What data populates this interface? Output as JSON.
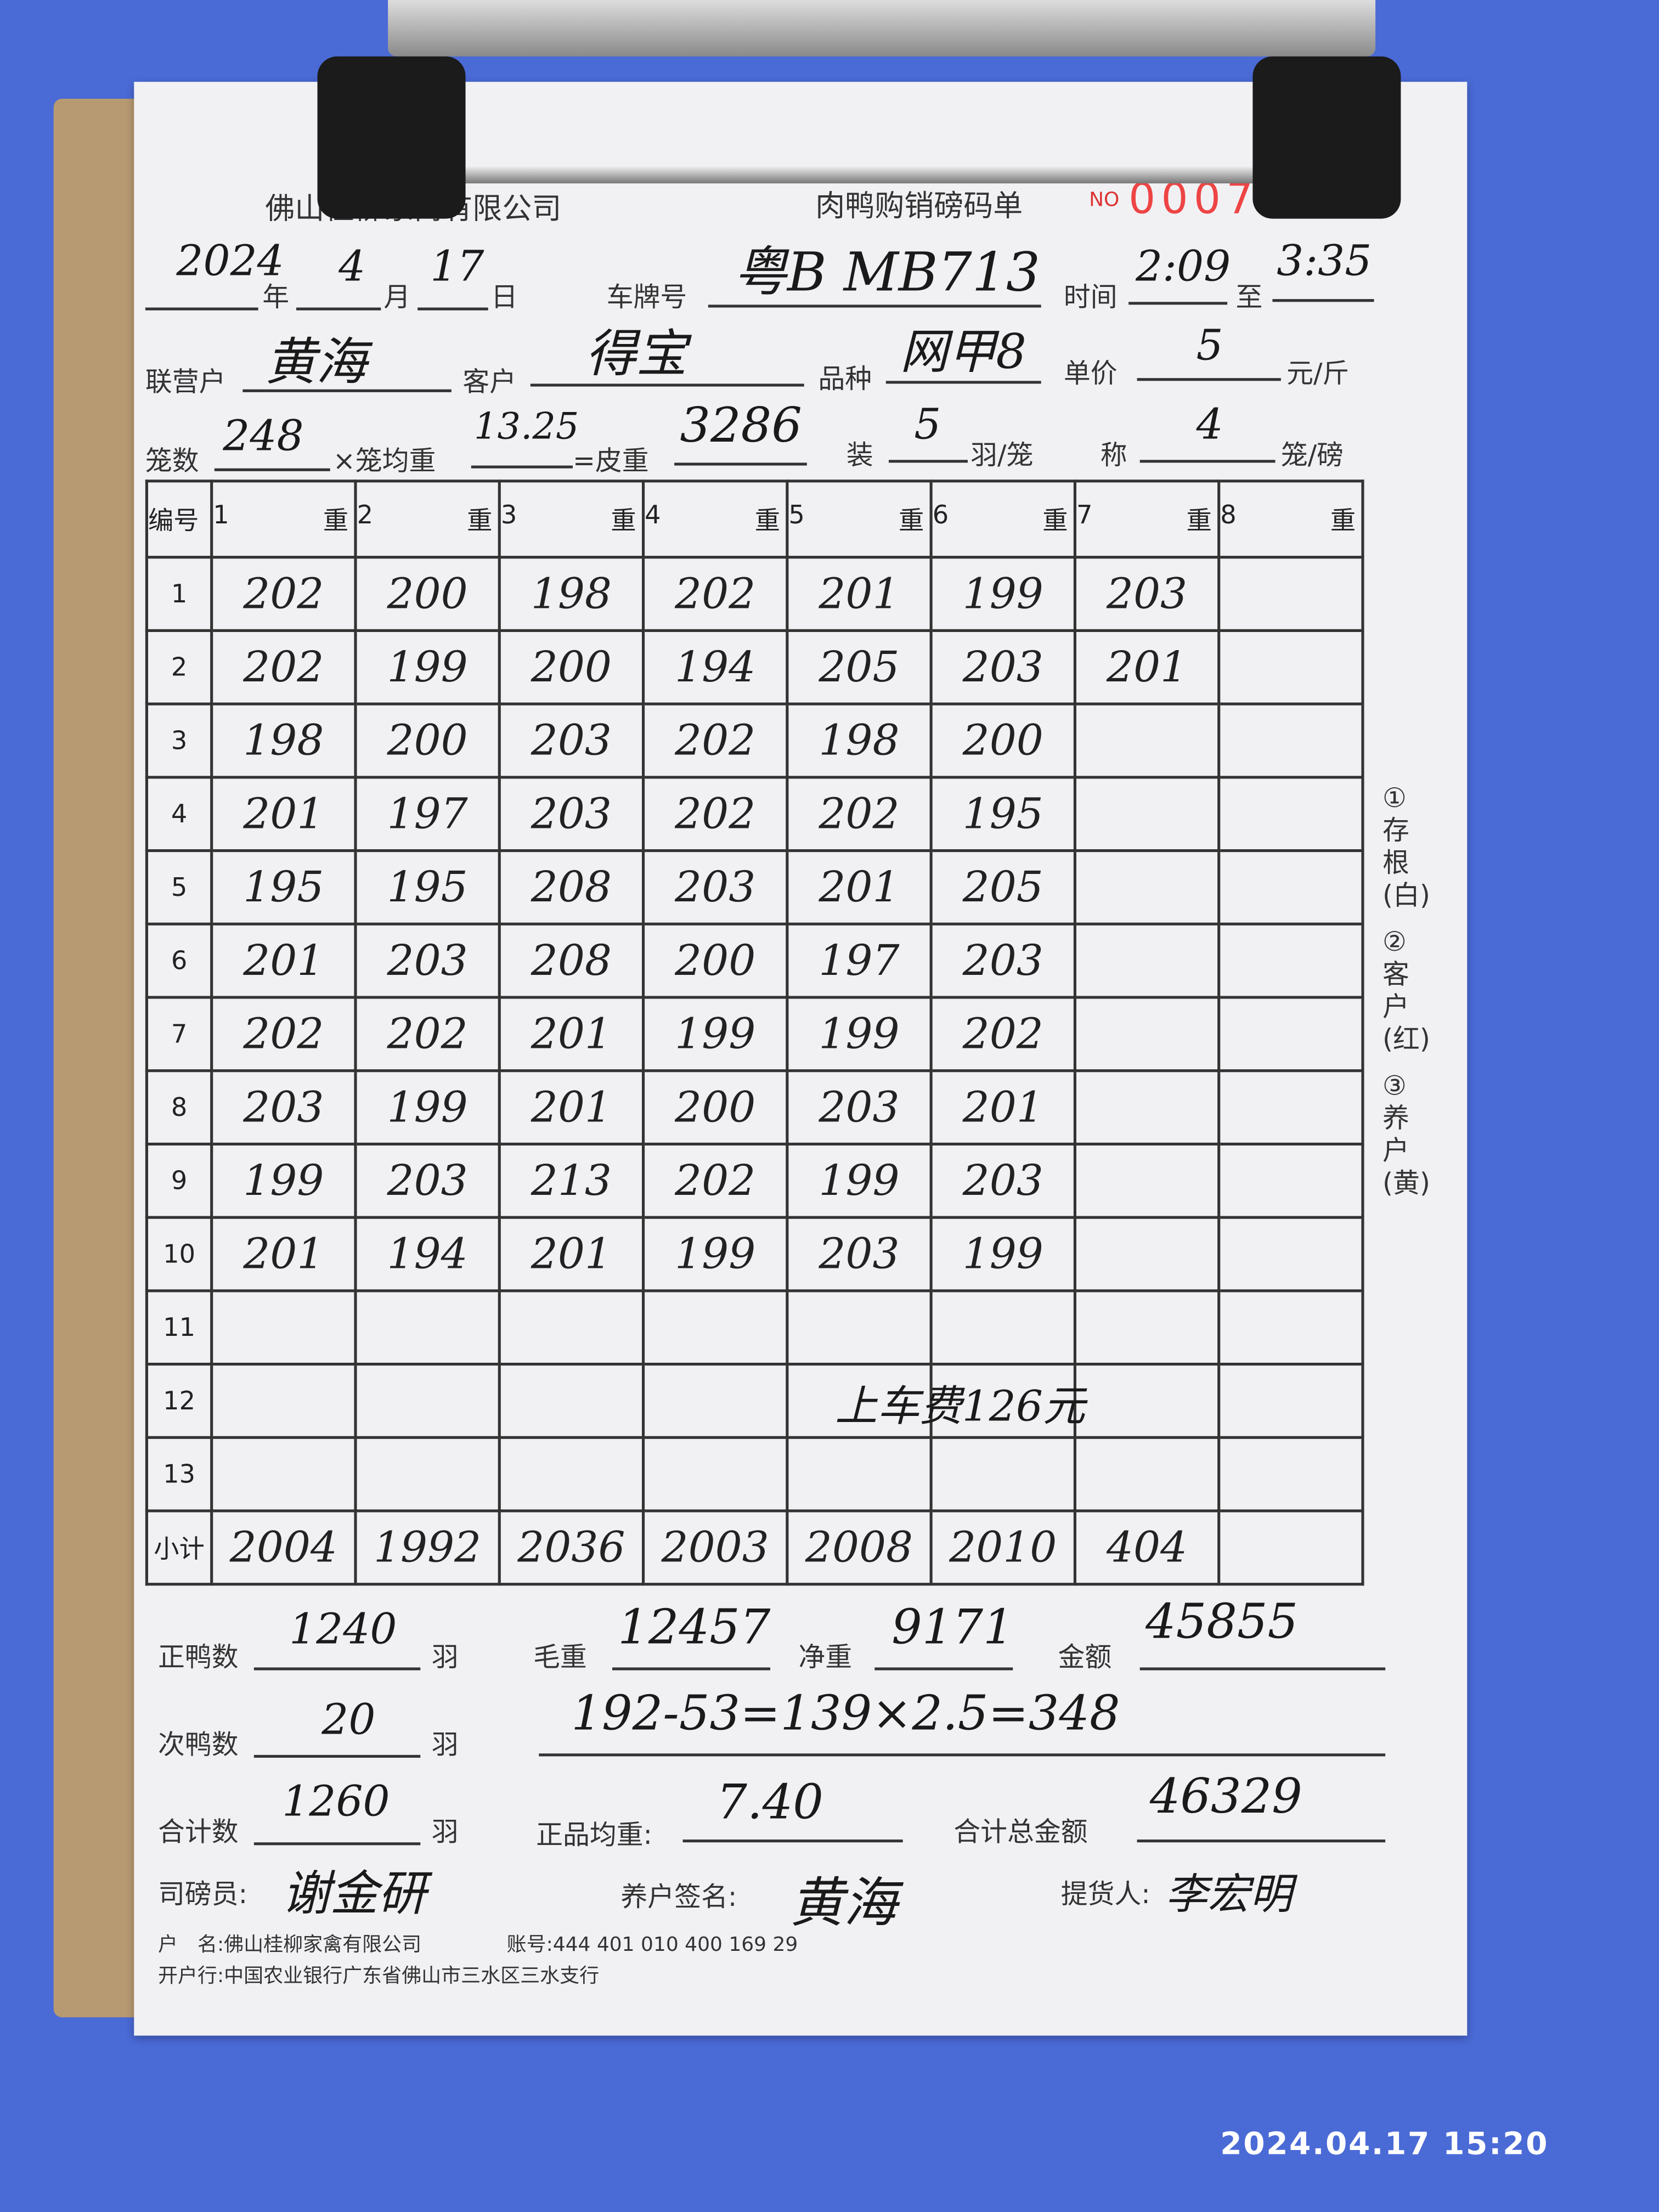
{
  "header": {
    "company": "佛山桂柳家禽有限公司",
    "form_title": "肉鸭购销磅码单",
    "no_label": "NO",
    "serial_no": "0007354"
  },
  "date": {
    "year": "2024",
    "year_label": "年",
    "month": "4",
    "month_label": "月",
    "day": "17",
    "day_label": "日"
  },
  "plate": {
    "label": "车牌号",
    "value": "粤B MB713"
  },
  "time": {
    "label": "时间",
    "from": "2:09",
    "to_label": "至",
    "to": "3:35"
  },
  "partner": {
    "label": "联营户",
    "value": "黄海"
  },
  "customer": {
    "label": "客户",
    "value": "得宝"
  },
  "breed": {
    "label": "品种",
    "value": "网甲8"
  },
  "unit_price": {
    "label": "单价",
    "value": "5",
    "unit": "元/斤"
  },
  "cages": {
    "label": "笼数",
    "value": "248",
    "times": "×笼均重",
    "avg": "13.25",
    "eq": "=皮重",
    "tare": "3286",
    "load_label": "装",
    "load": "5",
    "load_unit": "羽/笼",
    "weigh_label": "称",
    "weigh": "4",
    "weigh_unit": "笼/磅"
  },
  "table": {
    "no_header": "编号",
    "columns": [
      "1",
      "2",
      "3",
      "4",
      "5",
      "6",
      "7",
      "8"
    ],
    "col_suffix": "重",
    "row_numbers": [
      "1",
      "2",
      "3",
      "4",
      "5",
      "6",
      "7",
      "8",
      "9",
      "10",
      "11",
      "12",
      "13"
    ],
    "rows": [
      [
        "202",
        "200",
        "198",
        "202",
        "201",
        "199",
        "203",
        ""
      ],
      [
        "202",
        "199",
        "200",
        "194",
        "205",
        "203",
        "201",
        ""
      ],
      [
        "198",
        "200",
        "203",
        "202",
        "198",
        "200",
        "",
        ""
      ],
      [
        "201",
        "197",
        "203",
        "202",
        "202",
        "195",
        "",
        ""
      ],
      [
        "195",
        "195",
        "208",
        "203",
        "201",
        "205",
        "",
        ""
      ],
      [
        "201",
        "203",
        "208",
        "200",
        "197",
        "203",
        "",
        ""
      ],
      [
        "202",
        "202",
        "201",
        "199",
        "199",
        "202",
        "",
        ""
      ],
      [
        "203",
        "199",
        "201",
        "200",
        "203",
        "201",
        "",
        ""
      ],
      [
        "199",
        "203",
        "213",
        "202",
        "199",
        "203",
        "",
        ""
      ],
      [
        "201",
        "194",
        "201",
        "199",
        "203",
        "199",
        "",
        ""
      ],
      [
        "",
        "",
        "",
        "",
        "",
        "",
        "",
        ""
      ],
      [
        "",
        "",
        "",
        "",
        "",
        "",
        "",
        ""
      ],
      [
        "",
        "",
        "",
        "",
        "",
        "",
        "",
        ""
      ]
    ],
    "note_row12": "上车费126元",
    "subtotal_label": "小计",
    "subtotals": [
      "2004",
      "1992",
      "2036",
      "2003",
      "2008",
      "2010",
      "404",
      ""
    ]
  },
  "side": [
    "①存根(白)",
    "②客户(红)",
    "③养户(黄)"
  ],
  "summary": {
    "good_label": "正鸭数",
    "good": "1240",
    "good_unit": "羽",
    "gross_label": "毛重",
    "gross": "12457",
    "net_label": "净重",
    "net": "9171",
    "amount_label": "金额",
    "amount": "45855",
    "second_label": "次鸭数",
    "second": "20",
    "second_unit": "羽",
    "calc": "192-53=139×2.5=348",
    "total_label": "合计数",
    "total": "1260",
    "total_unit": "羽",
    "avg_label": "正品均重:",
    "avg": "7.40",
    "grand_label": "合计总金额",
    "grand": "46329"
  },
  "signatures": {
    "weigher_label": "司磅员:",
    "weigher": "谢金研",
    "farmer_label": "养户签名:",
    "farmer": "黄海",
    "picker_label": "提货人:",
    "picker": "李宏明"
  },
  "bank": {
    "name_label": "户　名:",
    "name": "佛山桂柳家禽有限公司",
    "account_label": "账号:",
    "account": "444 401 010 400 169 29",
    "bank_label": "开户行:",
    "bank": "中国农业银行广东省佛山市三水区三水支行"
  },
  "photo_timestamp": "2024.04.17 15:20"
}
